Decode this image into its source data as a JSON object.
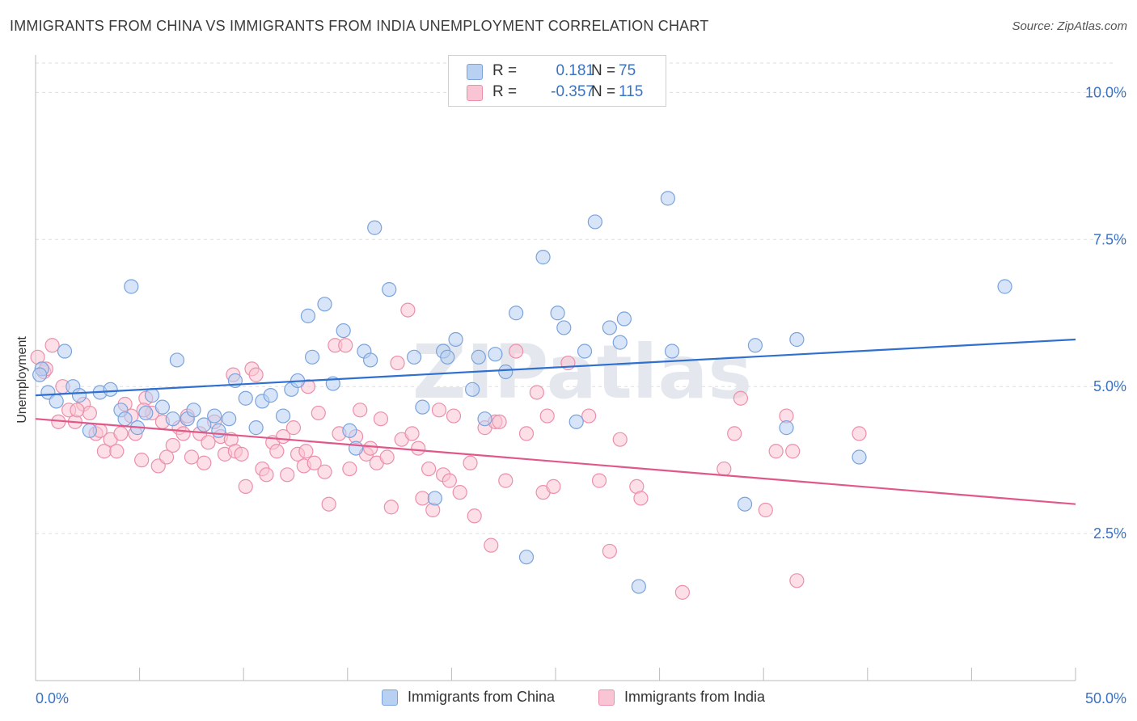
{
  "title": "IMMIGRANTS FROM CHINA VS IMMIGRANTS FROM INDIA UNEMPLOYMENT CORRELATION CHART",
  "source": "Source: ZipAtlas.com",
  "watermark": "ZIPatlas",
  "legend": {
    "china": {
      "r_label": "R =",
      "r_value": "0.181",
      "n_label": "N =",
      "n_value": "75"
    },
    "india": {
      "r_label": "R =",
      "r_value": "-0.357",
      "n_label": "N =",
      "n_value": "115"
    }
  },
  "colors": {
    "china_fill": "#b8d0f2",
    "china_stroke": "#7aa3dc",
    "china_line": "#2f6fd0",
    "india_fill": "#f9c4d4",
    "india_stroke": "#ec8fab",
    "india_line": "#e0588a",
    "tick_label": "#3a72c4",
    "grid": "#dddddd"
  },
  "chart_data": {
    "type": "scatter",
    "title": "IMMIGRANTS FROM CHINA VS IMMIGRANTS FROM INDIA UNEMPLOYMENT CORRELATION CHART",
    "xlabel": "",
    "ylabel": "Unemployment",
    "xlim": [
      0,
      50
    ],
    "ylim": [
      0,
      10.5
    ],
    "x_tick_labels": [
      "0.0%",
      "50.0%"
    ],
    "y_ticks": [
      2.5,
      5.0,
      7.5,
      10.0
    ],
    "y_tick_labels": [
      "2.5%",
      "5.0%",
      "7.5%",
      "10.0%"
    ],
    "grid": "horizontal dashed",
    "legend_position": "top-center",
    "series": [
      {
        "name": "Immigrants from China",
        "trend": {
          "x": [
            0,
            50
          ],
          "y": [
            4.85,
            5.8
          ]
        },
        "points": [
          [
            0.3,
            5.3
          ],
          [
            0.6,
            4.9
          ],
          [
            1.0,
            4.75
          ],
          [
            1.4,
            5.6
          ],
          [
            1.8,
            5.0
          ],
          [
            2.1,
            4.85
          ],
          [
            2.6,
            4.25
          ],
          [
            3.1,
            4.9
          ],
          [
            3.6,
            4.95
          ],
          [
            4.1,
            4.6
          ],
          [
            4.3,
            4.45
          ],
          [
            4.6,
            6.7
          ],
          [
            4.9,
            4.3
          ],
          [
            5.3,
            4.55
          ],
          [
            5.6,
            4.85
          ],
          [
            6.1,
            4.65
          ],
          [
            6.6,
            4.45
          ],
          [
            6.8,
            5.45
          ],
          [
            7.3,
            4.45
          ],
          [
            7.6,
            4.6
          ],
          [
            8.1,
            4.35
          ],
          [
            8.6,
            4.5
          ],
          [
            8.8,
            4.25
          ],
          [
            9.3,
            4.45
          ],
          [
            9.6,
            5.1
          ],
          [
            10.1,
            4.8
          ],
          [
            10.6,
            4.3
          ],
          [
            10.9,
            4.75
          ],
          [
            11.3,
            4.85
          ],
          [
            11.9,
            4.5
          ],
          [
            12.3,
            4.95
          ],
          [
            12.6,
            5.1
          ],
          [
            13.1,
            6.2
          ],
          [
            13.3,
            5.5
          ],
          [
            13.9,
            6.4
          ],
          [
            14.3,
            5.05
          ],
          [
            14.8,
            5.95
          ],
          [
            15.1,
            4.25
          ],
          [
            15.4,
            3.95
          ],
          [
            15.8,
            5.6
          ],
          [
            16.1,
            5.45
          ],
          [
            16.3,
            7.7
          ],
          [
            17.0,
            6.65
          ],
          [
            18.2,
            5.5
          ],
          [
            18.6,
            4.65
          ],
          [
            19.2,
            3.1
          ],
          [
            19.6,
            5.6
          ],
          [
            19.8,
            5.5
          ],
          [
            20.2,
            5.8
          ],
          [
            21.0,
            4.95
          ],
          [
            21.3,
            5.5
          ],
          [
            21.6,
            4.45
          ],
          [
            22.1,
            5.55
          ],
          [
            22.6,
            5.25
          ],
          [
            23.1,
            6.25
          ],
          [
            23.6,
            2.1
          ],
          [
            24.4,
            7.2
          ],
          [
            25.1,
            6.25
          ],
          [
            25.4,
            6.0
          ],
          [
            26.0,
            4.4
          ],
          [
            26.4,
            5.6
          ],
          [
            26.9,
            7.8
          ],
          [
            27.6,
            6.0
          ],
          [
            28.1,
            5.75
          ],
          [
            28.3,
            6.15
          ],
          [
            29.0,
            1.6
          ],
          [
            30.4,
            8.2
          ],
          [
            30.6,
            5.6
          ],
          [
            34.1,
            3.0
          ],
          [
            34.6,
            5.7
          ],
          [
            36.1,
            4.3
          ],
          [
            36.6,
            5.8
          ],
          [
            39.6,
            3.8
          ],
          [
            46.6,
            6.7
          ],
          [
            0.2,
            5.2
          ]
        ]
      },
      {
        "name": "Immigrants from India",
        "trend": {
          "x": [
            0,
            50
          ],
          "y": [
            4.45,
            3.0
          ]
        },
        "points": [
          [
            0.1,
            5.5
          ],
          [
            0.4,
            5.25
          ],
          [
            0.8,
            5.7
          ],
          [
            1.1,
            4.4
          ],
          [
            1.3,
            5.0
          ],
          [
            1.6,
            4.6
          ],
          [
            1.9,
            4.4
          ],
          [
            2.3,
            4.7
          ],
          [
            2.6,
            4.55
          ],
          [
            2.9,
            4.2
          ],
          [
            3.1,
            4.25
          ],
          [
            3.3,
            3.9
          ],
          [
            3.6,
            4.1
          ],
          [
            3.9,
            3.9
          ],
          [
            4.1,
            4.2
          ],
          [
            4.3,
            4.7
          ],
          [
            4.6,
            4.5
          ],
          [
            4.8,
            4.2
          ],
          [
            5.1,
            3.75
          ],
          [
            5.3,
            4.8
          ],
          [
            5.6,
            4.55
          ],
          [
            5.9,
            3.65
          ],
          [
            6.1,
            4.4
          ],
          [
            6.3,
            3.8
          ],
          [
            6.6,
            4.0
          ],
          [
            6.9,
            4.3
          ],
          [
            7.1,
            4.2
          ],
          [
            7.3,
            4.5
          ],
          [
            7.5,
            3.8
          ],
          [
            7.9,
            4.2
          ],
          [
            8.1,
            3.7
          ],
          [
            8.3,
            4.05
          ],
          [
            8.6,
            4.4
          ],
          [
            8.9,
            4.15
          ],
          [
            9.1,
            3.85
          ],
          [
            9.4,
            4.1
          ],
          [
            9.6,
            3.9
          ],
          [
            9.9,
            3.85
          ],
          [
            10.1,
            3.3
          ],
          [
            10.4,
            5.3
          ],
          [
            10.6,
            5.2
          ],
          [
            10.9,
            3.6
          ],
          [
            11.1,
            3.5
          ],
          [
            11.4,
            4.05
          ],
          [
            11.6,
            3.9
          ],
          [
            11.9,
            4.15
          ],
          [
            12.1,
            3.5
          ],
          [
            12.4,
            4.3
          ],
          [
            12.6,
            3.85
          ],
          [
            12.9,
            3.65
          ],
          [
            13.1,
            5.0
          ],
          [
            13.4,
            3.7
          ],
          [
            13.6,
            4.55
          ],
          [
            13.9,
            3.55
          ],
          [
            14.1,
            3.0
          ],
          [
            14.4,
            5.7
          ],
          [
            14.6,
            4.2
          ],
          [
            14.9,
            5.7
          ],
          [
            15.1,
            3.6
          ],
          [
            15.4,
            4.15
          ],
          [
            15.6,
            4.6
          ],
          [
            15.9,
            3.85
          ],
          [
            16.1,
            3.95
          ],
          [
            16.4,
            3.7
          ],
          [
            16.6,
            4.45
          ],
          [
            16.9,
            3.8
          ],
          [
            17.1,
            2.95
          ],
          [
            17.4,
            5.4
          ],
          [
            17.6,
            4.1
          ],
          [
            17.9,
            6.3
          ],
          [
            18.1,
            4.2
          ],
          [
            18.4,
            3.95
          ],
          [
            18.6,
            3.1
          ],
          [
            18.9,
            3.6
          ],
          [
            19.1,
            2.9
          ],
          [
            19.4,
            4.6
          ],
          [
            19.6,
            3.5
          ],
          [
            19.9,
            3.4
          ],
          [
            20.1,
            4.5
          ],
          [
            20.4,
            3.2
          ],
          [
            20.9,
            3.7
          ],
          [
            21.1,
            2.8
          ],
          [
            21.6,
            4.3
          ],
          [
            21.9,
            2.3
          ],
          [
            22.1,
            4.4
          ],
          [
            22.6,
            3.4
          ],
          [
            23.1,
            5.6
          ],
          [
            23.6,
            4.2
          ],
          [
            24.1,
            4.9
          ],
          [
            24.4,
            3.2
          ],
          [
            24.6,
            4.5
          ],
          [
            24.9,
            3.3
          ],
          [
            25.6,
            5.4
          ],
          [
            26.6,
            4.5
          ],
          [
            27.1,
            3.4
          ],
          [
            27.6,
            2.2
          ],
          [
            28.1,
            4.1
          ],
          [
            28.9,
            3.3
          ],
          [
            29.1,
            3.1
          ],
          [
            31.1,
            1.5
          ],
          [
            33.1,
            3.6
          ],
          [
            33.6,
            4.2
          ],
          [
            33.9,
            4.8
          ],
          [
            35.1,
            2.9
          ],
          [
            35.6,
            3.9
          ],
          [
            36.1,
            4.5
          ],
          [
            36.4,
            3.9
          ],
          [
            36.6,
            1.7
          ],
          [
            39.6,
            4.2
          ],
          [
            0.5,
            5.3
          ],
          [
            2.0,
            4.6
          ],
          [
            5.2,
            4.6
          ],
          [
            9.5,
            5.2
          ],
          [
            22.3,
            4.4
          ],
          [
            13.0,
            3.9
          ]
        ]
      }
    ]
  }
}
